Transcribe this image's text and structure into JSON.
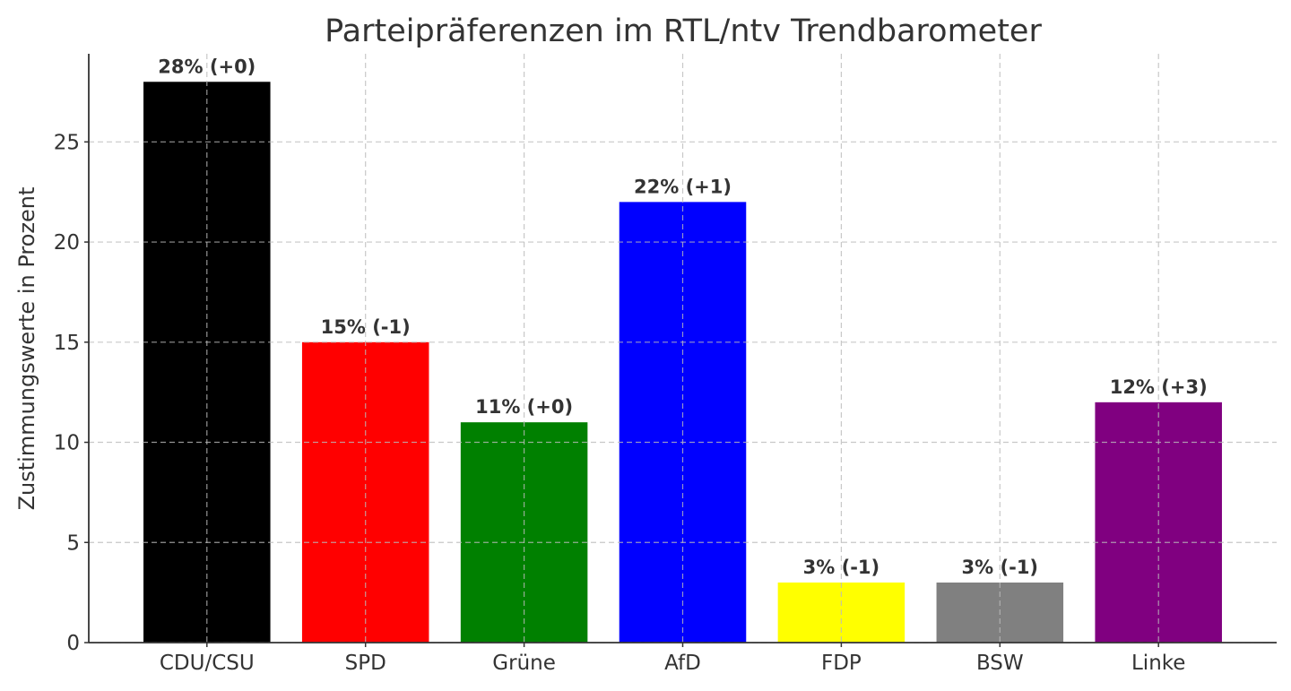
{
  "chart_data": {
    "type": "bar",
    "title": "Parteipräferenzen im RTL/ntv Trendbarometer",
    "xlabel": "",
    "ylabel": "Zustimmungswerte in Prozent",
    "categories": [
      "CDU/CSU",
      "SPD",
      "Grüne",
      "AfD",
      "FDP",
      "BSW",
      "Linke"
    ],
    "values": [
      28,
      15,
      11,
      22,
      3,
      3,
      12
    ],
    "data_labels": [
      "28% (+0)",
      "15% (-1)",
      "11% (+0)",
      "22% (+1)",
      "3% (-1)",
      "3% (-1)",
      "12% (+3)"
    ],
    "colors": [
      "#000000",
      "#ff0000",
      "#008000",
      "#0000ff",
      "#ffff00",
      "#808080",
      "#800080"
    ],
    "ylim": [
      0,
      29.4
    ],
    "yticks": [
      0,
      5,
      10,
      15,
      20,
      25
    ],
    "grid": true
  }
}
